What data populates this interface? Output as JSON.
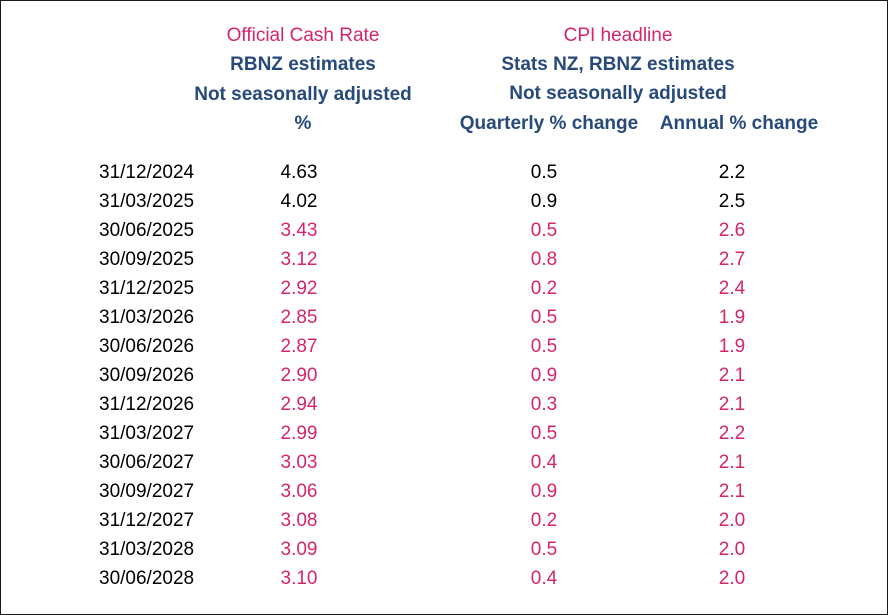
{
  "headers": {
    "ocr_title": "Official Cash Rate",
    "ocr_source": "RBNZ estimates",
    "ocr_adjustment": "Not seasonally adjusted",
    "ocr_unit": "%",
    "cpi_title": "CPI headline",
    "cpi_source": "Stats NZ, RBNZ estimates",
    "cpi_adjustment": "Not seasonally adjusted",
    "cpi_quarterly_label": "Quarterly % change",
    "cpi_annual_label": "Annual % change"
  },
  "colors": {
    "title": "#d6246e",
    "subheader": "#274a7a",
    "actual": "#000000",
    "forecast": "#d6246e"
  },
  "rows": [
    {
      "date": "31/12/2024",
      "ocr": "4.63",
      "cpi_q": "0.5",
      "cpi_a": "2.2",
      "status": "actual"
    },
    {
      "date": "31/03/2025",
      "ocr": "4.02",
      "cpi_q": "0.9",
      "cpi_a": "2.5",
      "status": "actual"
    },
    {
      "date": "30/06/2025",
      "ocr": "3.43",
      "cpi_q": "0.5",
      "cpi_a": "2.6",
      "status": "forecast"
    },
    {
      "date": "30/09/2025",
      "ocr": "3.12",
      "cpi_q": "0.8",
      "cpi_a": "2.7",
      "status": "forecast"
    },
    {
      "date": "31/12/2025",
      "ocr": "2.92",
      "cpi_q": "0.2",
      "cpi_a": "2.4",
      "status": "forecast"
    },
    {
      "date": "31/03/2026",
      "ocr": "2.85",
      "cpi_q": "0.5",
      "cpi_a": "1.9",
      "status": "forecast"
    },
    {
      "date": "30/06/2026",
      "ocr": "2.87",
      "cpi_q": "0.5",
      "cpi_a": "1.9",
      "status": "forecast"
    },
    {
      "date": "30/09/2026",
      "ocr": "2.90",
      "cpi_q": "0.9",
      "cpi_a": "2.1",
      "status": "forecast"
    },
    {
      "date": "31/12/2026",
      "ocr": "2.94",
      "cpi_q": "0.3",
      "cpi_a": "2.1",
      "status": "forecast"
    },
    {
      "date": "31/03/2027",
      "ocr": "2.99",
      "cpi_q": "0.5",
      "cpi_a": "2.2",
      "status": "forecast"
    },
    {
      "date": "30/06/2027",
      "ocr": "3.03",
      "cpi_q": "0.4",
      "cpi_a": "2.1",
      "status": "forecast"
    },
    {
      "date": "30/09/2027",
      "ocr": "3.06",
      "cpi_q": "0.9",
      "cpi_a": "2.1",
      "status": "forecast"
    },
    {
      "date": "31/12/2027",
      "ocr": "3.08",
      "cpi_q": "0.2",
      "cpi_a": "2.0",
      "status": "forecast"
    },
    {
      "date": "31/03/2028",
      "ocr": "3.09",
      "cpi_q": "0.5",
      "cpi_a": "2.0",
      "status": "forecast"
    },
    {
      "date": "30/06/2028",
      "ocr": "3.10",
      "cpi_q": "0.4",
      "cpi_a": "2.0",
      "status": "forecast"
    }
  ]
}
